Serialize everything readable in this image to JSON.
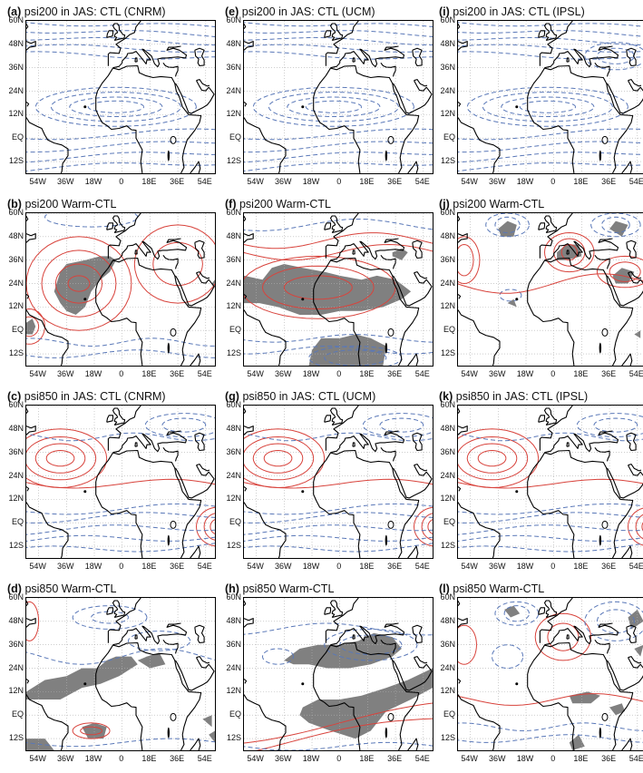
{
  "figure": {
    "lat_ticks": [
      "60N",
      "48N",
      "36N",
      "24N",
      "12N",
      "EQ",
      "12S"
    ],
    "lon_ticks": [
      "54W",
      "36W",
      "18W",
      "0",
      "18E",
      "36E",
      "54E"
    ],
    "colors": {
      "negative_contour": "#5a78b8",
      "positive_contour": "#d8433c",
      "significance_shading": "#808080",
      "coastline": "#000000",
      "grid": "#b0b0b0"
    },
    "panels": [
      {
        "id": "a",
        "label": "(a)",
        "title": "psi200 in JAS: CTL (CNRM)",
        "field": "psi200-ctl",
        "shading": []
      },
      {
        "id": "e",
        "label": "(e)",
        "title": "psi200 in JAS: CTL (UCM)",
        "field": "psi200-ctl",
        "shading": []
      },
      {
        "id": "i",
        "label": "(i)",
        "title": "psi200 in JAS: CTL (IPSL)",
        "field": "psi200-ctl-ipsl",
        "shading": []
      },
      {
        "id": "b",
        "label": "(b)",
        "title": "psi200 Warm-CTL",
        "field": "b",
        "shading": [
          "sahel"
        ]
      },
      {
        "id": "f",
        "label": "(f)",
        "title": "psi200 Warm-CTL",
        "field": "f",
        "shading": [
          "north-band",
          "gulf"
        ]
      },
      {
        "id": "j",
        "label": "(j)",
        "title": "psi200 Warm-CTL",
        "field": "j",
        "shading": [
          "north-blobs"
        ]
      },
      {
        "id": "c",
        "label": "(c)",
        "title": "psi850 in JAS: CTL (CNRM)",
        "field": "psi850-ctl",
        "shading": []
      },
      {
        "id": "g",
        "label": "(g)",
        "title": "psi850 in JAS: CTL (UCM)",
        "field": "psi850-ctl",
        "shading": []
      },
      {
        "id": "k",
        "label": "(k)",
        "title": "psi850 in JAS: CTL (IPSL)",
        "field": "psi850-ctl",
        "shading": []
      },
      {
        "id": "d",
        "label": "(d)",
        "title": "psi850 Warm-CTL",
        "field": "d",
        "shading": [
          "atl-band",
          "south-atl"
        ]
      },
      {
        "id": "h",
        "label": "(h)",
        "title": "psi850 Warm-CTL",
        "field": "h",
        "shading": [
          "sahara",
          "sw-band"
        ]
      },
      {
        "id": "l",
        "label": "(l)",
        "title": "psi850 Warm-CTL",
        "field": "l",
        "shading": [
          "small-blobs"
        ]
      }
    ]
  }
}
